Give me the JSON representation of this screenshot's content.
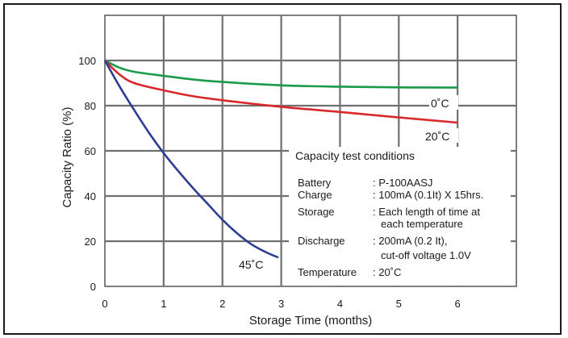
{
  "chart_data": {
    "type": "line",
    "title": "",
    "xlabel": "Storage Time (months)",
    "ylabel": "Capacity Ratio (%)",
    "xlim": [
      0,
      7
    ],
    "ylim": [
      0,
      120
    ],
    "grid": true,
    "xticks": [
      "0",
      "1",
      "2",
      "3",
      "4",
      "5",
      "6"
    ],
    "yticks": [
      "0",
      "20",
      "40",
      "60",
      "80",
      "100"
    ],
    "series": [
      {
        "name": "0˚C",
        "color": "#1a9a4a",
        "x": [
          0,
          0.25,
          0.5,
          1,
          1.5,
          2,
          3,
          4,
          5,
          6
        ],
        "y": [
          100,
          96.8,
          95.0,
          93.2,
          91.6,
          90.5,
          89.0,
          88.4,
          88.1,
          88.0
        ]
      },
      {
        "name": "20˚C",
        "color": "#d9282b",
        "x": [
          0,
          0.25,
          0.5,
          1,
          1.5,
          2,
          3,
          4,
          5,
          6
        ],
        "y": [
          100,
          93.8,
          90.0,
          86.8,
          84.2,
          82.4,
          79.5,
          77.2,
          74.8,
          72.5
        ]
      },
      {
        "name": "45˚C",
        "color": "#2e3d91",
        "x": [
          0,
          0.25,
          0.5,
          0.75,
          1,
          1.25,
          1.5,
          1.75,
          2,
          2.25,
          2.5,
          2.75,
          2.95
        ],
        "y": [
          100,
          88.5,
          78.0,
          68.0,
          59.0,
          51.0,
          43.5,
          36.5,
          29.5,
          23.5,
          18.5,
          15.0,
          12.8
        ]
      }
    ],
    "annotation": {
      "title": "Capacity test conditions",
      "rows": [
        {
          "label": "Battery",
          "value": ": P-100AASJ"
        },
        {
          "label": "Charge",
          "value": ": 100mA (0.1It) X 15hrs."
        },
        {
          "label": "Storage",
          "value": ": Each length of time at"
        },
        {
          "label": "",
          "value": "each temperature"
        },
        {
          "label": "Discharge",
          "value": ": 200mA (0.2 It),"
        },
        {
          "label": "",
          "value": "cut-off voltage 1.0V"
        },
        {
          "label": "Temperature",
          "value": ": 20˚C"
        }
      ]
    }
  }
}
